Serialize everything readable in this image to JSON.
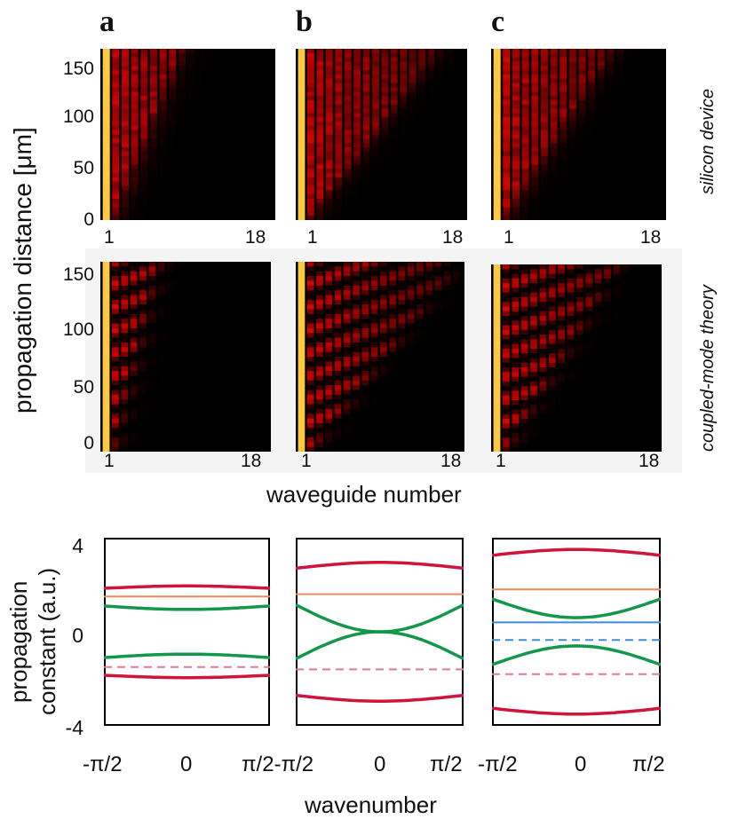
{
  "panels": {
    "a": "a",
    "b": "b",
    "c": "c"
  },
  "row_labels": {
    "top": "silicon device",
    "middle": "coupled-mode theory"
  },
  "heatmap_axes": {
    "y_title": "propagation distance [μm]",
    "x_title": "waveguide number",
    "y_ticks_top": [
      "150",
      "100",
      "50",
      "0"
    ],
    "y_ticks_mid": [
      "150",
      "100",
      "50",
      "0"
    ],
    "x_tick_first": "1",
    "x_tick_last": "18"
  },
  "band_axes": {
    "y_title_line1": "propagation",
    "y_title_line2": "constant (a.u.)",
    "x_title": "wavenumber",
    "y_tick_top": "4",
    "y_tick_mid": "0",
    "y_tick_bottom": "-4",
    "x_tick_a_left": "-π/2",
    "x_tick_a_mid": "0",
    "x_tick_a_right": "π/2-π/2",
    "x_tick_b_mid": "0",
    "x_tick_b_right": "π/2",
    "x_tick_c_left": "-π/2",
    "x_tick_c_mid": "0",
    "x_tick_c_right": "π/2"
  },
  "colors": {
    "red": "#d0143c",
    "orange": "#f08a5d",
    "green": "#14964b",
    "blue": "#3a8fd6",
    "pink_dash": "#e07a9a",
    "heat_dark": "#000000",
    "heat_hot": "#ffd34a"
  },
  "chart_data": [
    {
      "type": "heatmap",
      "panel": "a",
      "row": "silicon device",
      "x": {
        "label": "waveguide number",
        "range": [
          1,
          18
        ]
      },
      "y": {
        "label": "propagation distance [μm]",
        "range": [
          0,
          160
        ]
      },
      "brightest_waveguide": 1
    },
    {
      "type": "heatmap",
      "panel": "b",
      "row": "silicon device",
      "x": {
        "label": "waveguide number",
        "range": [
          1,
          18
        ]
      },
      "y": {
        "label": "propagation distance [μm]",
        "range": [
          0,
          160
        ]
      },
      "brightest_waveguide": 1
    },
    {
      "type": "heatmap",
      "panel": "c",
      "row": "silicon device",
      "x": {
        "label": "waveguide number",
        "range": [
          1,
          18
        ]
      },
      "y": {
        "label": "propagation distance [μm]",
        "range": [
          0,
          160
        ]
      },
      "brightest_waveguide": 1
    },
    {
      "type": "heatmap",
      "panel": "a",
      "row": "coupled-mode theory",
      "x": {
        "label": "waveguide number",
        "range": [
          1,
          18
        ]
      },
      "y": {
        "label": "propagation distance [μm]",
        "range": [
          0,
          160
        ]
      },
      "brightest_waveguide": 1
    },
    {
      "type": "heatmap",
      "panel": "b",
      "row": "coupled-mode theory",
      "x": {
        "label": "waveguide number",
        "range": [
          1,
          18
        ]
      },
      "y": {
        "label": "propagation distance [μm]",
        "range": [
          0,
          160
        ]
      },
      "brightest_waveguide": 1
    },
    {
      "type": "heatmap",
      "panel": "c",
      "row": "coupled-mode theory",
      "x": {
        "label": "waveguide number",
        "range": [
          1,
          18
        ]
      },
      "y": {
        "label": "propagation distance [μm]",
        "range": [
          0,
          160
        ]
      },
      "brightest_waveguide": 1
    },
    {
      "type": "line",
      "panel": "a",
      "xlabel": "wavenumber",
      "ylabel": "propagation constant (a.u.)",
      "xlim": [
        -1.5708,
        1.5708
      ],
      "ylim": [
        -4,
        4
      ],
      "x_ticks": [
        "-π/2",
        "0",
        "π/2"
      ],
      "y_ticks": [
        "4",
        "0",
        "-4"
      ],
      "bands": [
        {
          "color": "red",
          "style": "solid",
          "edge": 1.85,
          "center": 1.95
        },
        {
          "color": "orange",
          "style": "solid",
          "edge": 1.5,
          "center": 1.5
        },
        {
          "color": "green",
          "style": "solid",
          "edge": 1.1,
          "center": 0.95
        },
        {
          "color": "green",
          "style": "solid",
          "edge": -1.1,
          "center": -0.95
        },
        {
          "color": "pink_dash",
          "style": "dashed",
          "edge": -1.5,
          "center": -1.5
        },
        {
          "color": "red",
          "style": "solid",
          "edge": -1.85,
          "center": -1.95
        }
      ]
    },
    {
      "type": "line",
      "panel": "b",
      "xlabel": "wavenumber",
      "ylabel": "propagation constant (a.u.)",
      "xlim": [
        -1.5708,
        1.5708
      ],
      "ylim": [
        -4,
        4
      ],
      "x_ticks": [
        "-π/2",
        "0",
        "π/2"
      ],
      "y_ticks": [
        "4",
        "0",
        "-4"
      ],
      "bands": [
        {
          "color": "red",
          "style": "solid",
          "edge": 2.7,
          "center": 2.95
        },
        {
          "color": "orange",
          "style": "solid",
          "edge": 1.6,
          "center": 1.6
        },
        {
          "color": "green",
          "style": "solid",
          "edge": 1.15,
          "center": 0.0
        },
        {
          "color": "green",
          "style": "solid",
          "edge": -1.15,
          "center": 0.0
        },
        {
          "color": "pink_dash",
          "style": "dashed",
          "edge": -1.6,
          "center": -1.6
        },
        {
          "color": "red",
          "style": "solid",
          "edge": -2.7,
          "center": -2.95
        }
      ]
    },
    {
      "type": "line",
      "panel": "c",
      "xlabel": "wavenumber",
      "ylabel": "propagation constant (a.u.)",
      "xlim": [
        -1.5708,
        1.5708
      ],
      "ylim": [
        -4,
        4
      ],
      "x_ticks": [
        "-π/2",
        "0",
        "π/2"
      ],
      "y_ticks": [
        "4",
        "0",
        "-4"
      ],
      "bands": [
        {
          "color": "red",
          "style": "solid",
          "edge": 3.25,
          "center": 3.5
        },
        {
          "color": "orange",
          "style": "solid",
          "edge": 1.8,
          "center": 1.8
        },
        {
          "color": "green",
          "style": "solid",
          "edge": 1.4,
          "center": 0.6
        },
        {
          "color": "blue",
          "style": "solid",
          "edge": 0.4,
          "center": 0.4
        },
        {
          "color": "blue",
          "style": "dashed",
          "edge": -0.35,
          "center": -0.35
        },
        {
          "color": "green",
          "style": "solid",
          "edge": -1.4,
          "center": -0.6
        },
        {
          "color": "pink_dash",
          "style": "dashed",
          "edge": -1.8,
          "center": -1.8
        },
        {
          "color": "red",
          "style": "solid",
          "edge": -3.25,
          "center": -3.5
        }
      ]
    }
  ]
}
